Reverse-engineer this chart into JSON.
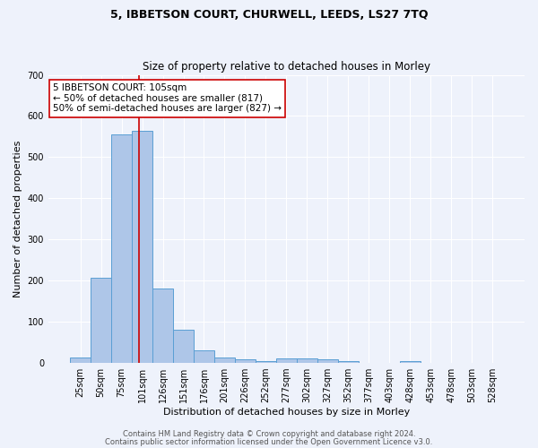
{
  "title1": "5, IBBETSON COURT, CHURWELL, LEEDS, LS27 7TQ",
  "title2": "Size of property relative to detached houses in Morley",
  "xlabel": "Distribution of detached houses by size in Morley",
  "ylabel": "Number of detached properties",
  "bar_labels": [
    "25sqm",
    "50sqm",
    "75sqm",
    "101sqm",
    "126sqm",
    "151sqm",
    "176sqm",
    "201sqm",
    "226sqm",
    "252sqm",
    "277sqm",
    "302sqm",
    "327sqm",
    "352sqm",
    "377sqm",
    "403sqm",
    "428sqm",
    "453sqm",
    "478sqm",
    "503sqm",
    "528sqm"
  ],
  "bar_values": [
    13,
    207,
    555,
    565,
    181,
    80,
    30,
    14,
    8,
    5,
    10,
    10,
    8,
    5,
    0,
    0,
    5,
    0,
    0,
    0,
    0
  ],
  "bar_color": "#aec6e8",
  "bar_edgecolor": "#5a9fd4",
  "vline_x_index": 3,
  "vline_color": "#cc0000",
  "annotation_line1": "5 IBBETSON COURT: 105sqm",
  "annotation_line2": "← 50% of detached houses are smaller (817)",
  "annotation_line3": "50% of semi-detached houses are larger (827) →",
  "annotation_box_color": "#ffffff",
  "annotation_box_edgecolor": "#cc0000",
  "ylim": [
    0,
    700
  ],
  "yticks": [
    0,
    100,
    200,
    300,
    400,
    500,
    600,
    700
  ],
  "footnote1": "Contains HM Land Registry data © Crown copyright and database right 2024.",
  "footnote2": "Contains public sector information licensed under the Open Government Licence v3.0.",
  "bg_color": "#eef2fb",
  "grid_color": "#ffffff",
  "title1_fontsize": 9,
  "title2_fontsize": 8.5,
  "axis_label_fontsize": 8,
  "tick_fontsize": 7,
  "annotation_fontsize": 7.5,
  "footnote_fontsize": 6
}
